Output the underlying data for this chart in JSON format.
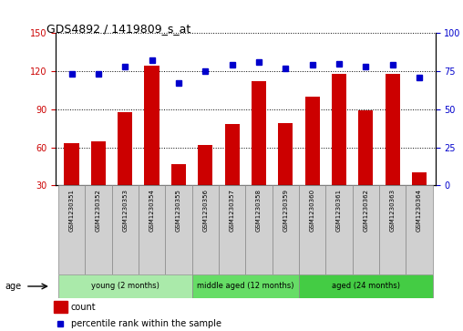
{
  "title": "GDS4892 / 1419809_s_at",
  "samples": [
    "GSM1230351",
    "GSM1230352",
    "GSM1230353",
    "GSM1230354",
    "GSM1230355",
    "GSM1230356",
    "GSM1230357",
    "GSM1230358",
    "GSM1230359",
    "GSM1230360",
    "GSM1230361",
    "GSM1230362",
    "GSM1230363",
    "GSM1230364"
  ],
  "counts": [
    63,
    65,
    88,
    124,
    47,
    62,
    78,
    112,
    79,
    100,
    118,
    89,
    118,
    40
  ],
  "percentiles": [
    73,
    73,
    78,
    82,
    67,
    75,
    79,
    81,
    77,
    79,
    80,
    78,
    79,
    71
  ],
  "ylim_left": [
    30,
    150
  ],
  "ylim_right": [
    0,
    100
  ],
  "yticks_left": [
    30,
    60,
    90,
    120,
    150
  ],
  "yticks_right": [
    0,
    25,
    50,
    75,
    100
  ],
  "groups": [
    {
      "label": "young (2 months)",
      "start": 0,
      "end": 5,
      "color": "#AAEAAA"
    },
    {
      "label": "middle aged (12 months)",
      "start": 5,
      "end": 9,
      "color": "#66DD66"
    },
    {
      "label": "aged (24 months)",
      "start": 9,
      "end": 14,
      "color": "#44CC44"
    }
  ],
  "bar_color": "#CC0000",
  "dot_color": "#0000CC",
  "bar_bottom": 30,
  "tick_label_color_left": "#CC0000",
  "tick_label_color_right": "#0000CC",
  "legend_items": [
    {
      "color": "#CC0000",
      "label": "count"
    },
    {
      "color": "#0000CC",
      "label": "percentile rank within the sample"
    }
  ]
}
